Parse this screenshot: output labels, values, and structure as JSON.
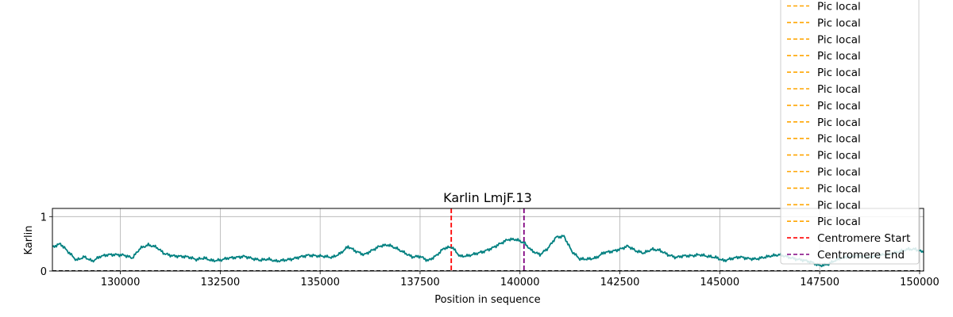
{
  "chart_data": {
    "type": "line",
    "title": "Karlin LmjF.13",
    "xlabel": "Position in sequence",
    "ylabel": "Karlin",
    "xlim": [
      128300,
      150100
    ],
    "ylim": [
      0,
      1.15
    ],
    "x_ticks": [
      130000,
      132500,
      135000,
      137500,
      140000,
      142500,
      145000,
      147500,
      150000
    ],
    "y_ticks": [
      0,
      1
    ],
    "grid": true,
    "legend_position": "top-right",
    "colors": {
      "series": "#008080",
      "pic_local": "#FFA500",
      "centromere_start": "#FF0000",
      "centromere_end": "#800080",
      "baseline": "#000000",
      "grid": "#b0b0b0"
    },
    "series": [
      {
        "x": [
          128300,
          128500,
          128700,
          128900,
          129100,
          129300,
          129500,
          129700,
          129900,
          130100,
          130300,
          130500,
          130700,
          130900,
          131100,
          131300,
          131500,
          131700,
          131900,
          132100,
          132300,
          132500,
          132700,
          132900,
          133100,
          133300,
          133500,
          133700,
          133900,
          134100,
          134300,
          134500,
          134700,
          134900,
          135100,
          135300,
          135500,
          135700,
          135900,
          136100,
          136300,
          136500,
          136700,
          136900,
          137100,
          137300,
          137500,
          137700,
          137900,
          138100,
          138300,
          138500,
          138700,
          138900,
          139100,
          139300,
          139500,
          139700,
          139900,
          140100,
          140300,
          140500,
          140700,
          140900,
          141100,
          141300,
          141500,
          141700,
          141900,
          142100,
          142300,
          142500,
          142700,
          142900,
          143100,
          143300,
          143500,
          143700,
          143900,
          144100,
          144300,
          144500,
          144700,
          144900,
          145100,
          145300,
          145500,
          145700,
          145900,
          146100,
          146300,
          146500,
          146700,
          146900,
          147100,
          147300,
          147500,
          147700,
          147900,
          148100,
          148300,
          148500,
          148700,
          148900,
          149100,
          149300,
          149500,
          149700,
          149900,
          150100
        ],
        "y": [
          0.44,
          0.5,
          0.35,
          0.2,
          0.26,
          0.18,
          0.27,
          0.3,
          0.3,
          0.29,
          0.24,
          0.42,
          0.48,
          0.44,
          0.32,
          0.28,
          0.27,
          0.26,
          0.21,
          0.24,
          0.19,
          0.2,
          0.24,
          0.25,
          0.27,
          0.23,
          0.2,
          0.22,
          0.18,
          0.2,
          0.22,
          0.26,
          0.29,
          0.28,
          0.27,
          0.25,
          0.32,
          0.45,
          0.36,
          0.3,
          0.38,
          0.46,
          0.48,
          0.42,
          0.34,
          0.26,
          0.27,
          0.19,
          0.28,
          0.42,
          0.44,
          0.27,
          0.28,
          0.32,
          0.36,
          0.42,
          0.5,
          0.58,
          0.58,
          0.52,
          0.37,
          0.3,
          0.42,
          0.62,
          0.64,
          0.36,
          0.22,
          0.22,
          0.24,
          0.34,
          0.36,
          0.4,
          0.46,
          0.37,
          0.33,
          0.4,
          0.38,
          0.3,
          0.25,
          0.28,
          0.28,
          0.3,
          0.27,
          0.25,
          0.19,
          0.23,
          0.26,
          0.23,
          0.22,
          0.25,
          0.28,
          0.3,
          0.26,
          0.22,
          0.2,
          0.16,
          0.1,
          0.12,
          0.2,
          0.25,
          0.27,
          0.28,
          0.25,
          0.28,
          0.3,
          0.32,
          0.36,
          0.4,
          0.4,
          0.34
        ]
      }
    ],
    "vlines": [
      {
        "label": "Centromere Start",
        "x": 138280
      },
      {
        "label": "Centromere End",
        "x": 140100
      }
    ],
    "legend": [
      {
        "label": "Pic local",
        "style": "dashed",
        "color_key": "pic_local"
      },
      {
        "label": "Pic local",
        "style": "dashed",
        "color_key": "pic_local"
      },
      {
        "label": "Pic local",
        "style": "dashed",
        "color_key": "pic_local"
      },
      {
        "label": "Pic local",
        "style": "dashed",
        "color_key": "pic_local"
      },
      {
        "label": "Pic local",
        "style": "dashed",
        "color_key": "pic_local"
      },
      {
        "label": "Pic local",
        "style": "dashed",
        "color_key": "pic_local"
      },
      {
        "label": "Pic local",
        "style": "dashed",
        "color_key": "pic_local"
      },
      {
        "label": "Pic local",
        "style": "dashed",
        "color_key": "pic_local"
      },
      {
        "label": "Pic local",
        "style": "dashed",
        "color_key": "pic_local"
      },
      {
        "label": "Pic local",
        "style": "dashed",
        "color_key": "pic_local"
      },
      {
        "label": "Pic local",
        "style": "dashed",
        "color_key": "pic_local"
      },
      {
        "label": "Pic local",
        "style": "dashed",
        "color_key": "pic_local"
      },
      {
        "label": "Pic local",
        "style": "dashed",
        "color_key": "pic_local"
      },
      {
        "label": "Pic local",
        "style": "dashed",
        "color_key": "pic_local"
      },
      {
        "label": "Centromere Start",
        "style": "dashed",
        "color_key": "centromere_start"
      },
      {
        "label": "Centromere End",
        "style": "dashed",
        "color_key": "centromere_end"
      }
    ]
  }
}
